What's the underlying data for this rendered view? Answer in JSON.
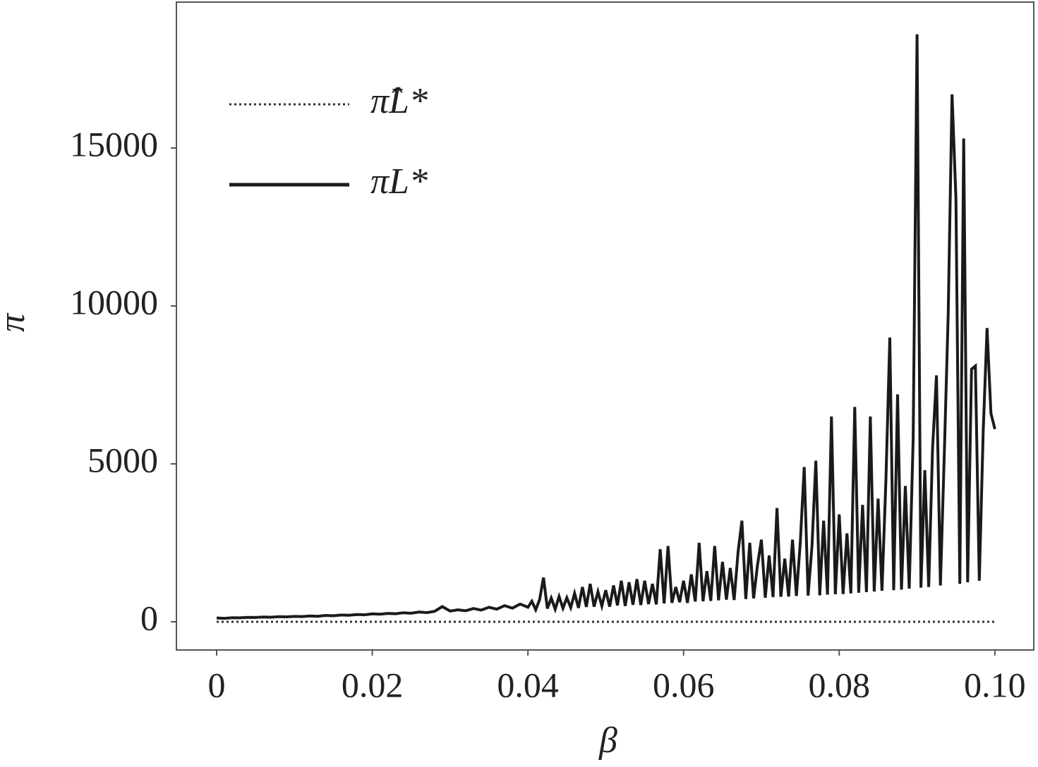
{
  "chart_data": {
    "type": "line",
    "x_label": "β",
    "y_label": "π",
    "xlim": [
      -0.00517,
      0.105
    ],
    "ylim": [
      -893,
      19620
    ],
    "xticks": [
      0,
      0.02,
      0.04,
      0.06,
      0.08,
      {
        "value": 0.1,
        "label": "0.10"
      }
    ],
    "yticks": [
      0,
      5000,
      10000,
      15000
    ],
    "legend": "upper-left",
    "series": [
      {
        "name": "π̂L*",
        "color": "#333333",
        "style": "dotted",
        "x": [
          0,
          0.1
        ],
        "values": [
          0,
          0
        ]
      },
      {
        "name": "πL*",
        "color": "#1a1a1a",
        "style": "solid",
        "x": [
          0,
          0.001,
          0.002,
          0.003,
          0.004,
          0.005,
          0.006,
          0.007,
          0.008,
          0.009,
          0.01,
          0.011,
          0.012,
          0.013,
          0.014,
          0.015,
          0.016,
          0.017,
          0.018,
          0.019,
          0.02,
          0.021,
          0.022,
          0.023,
          0.024,
          0.025,
          0.026,
          0.027,
          0.028,
          0.029,
          0.03,
          0.031,
          0.032,
          0.033,
          0.034,
          0.035,
          0.036,
          0.037,
          0.038,
          0.039,
          0.04,
          0.0405,
          0.041,
          0.0415,
          0.042,
          0.0425,
          0.043,
          0.0435,
          0.044,
          0.0445,
          0.045,
          0.0455,
          0.046,
          0.0465,
          0.047,
          0.0475,
          0.048,
          0.0485,
          0.049,
          0.0495,
          0.05,
          0.0505,
          0.051,
          0.0515,
          0.052,
          0.0525,
          0.053,
          0.0535,
          0.054,
          0.0545,
          0.055,
          0.0555,
          0.056,
          0.0565,
          0.057,
          0.0575,
          0.058,
          0.0585,
          0.059,
          0.0595,
          0.06,
          0.0605,
          0.061,
          0.0615,
          0.062,
          0.0625,
          0.063,
          0.0635,
          0.064,
          0.0645,
          0.065,
          0.0655,
          0.066,
          0.0665,
          0.067,
          0.0675,
          0.068,
          0.0685,
          0.069,
          0.0695,
          0.07,
          0.0705,
          0.071,
          0.0715,
          0.072,
          0.0725,
          0.073,
          0.0735,
          0.074,
          0.0745,
          0.075,
          0.0755,
          0.076,
          0.0765,
          0.077,
          0.0775,
          0.078,
          0.0785,
          0.079,
          0.0795,
          0.08,
          0.0805,
          0.081,
          0.0815,
          0.082,
          0.0825,
          0.083,
          0.0835,
          0.084,
          0.0845,
          0.085,
          0.0855,
          0.086,
          0.0865,
          0.087,
          0.0875,
          0.088,
          0.0885,
          0.089,
          0.0895,
          0.09,
          0.0905,
          0.091,
          0.0915,
          0.092,
          0.0925,
          0.093,
          0.0935,
          0.094,
          0.0945,
          0.095,
          0.0955,
          0.096,
          0.0965,
          0.097,
          0.0975,
          0.098,
          0.0985,
          0.099,
          0.0995,
          0.1
        ],
        "values": [
          120,
          110,
          130,
          125,
          140,
          135,
          150,
          145,
          160,
          155,
          170,
          165,
          185,
          175,
          200,
          190,
          215,
          205,
          230,
          220,
          250,
          240,
          265,
          255,
          285,
          270,
          310,
          290,
          330,
          480,
          340,
          380,
          350,
          420,
          370,
          460,
          400,
          510,
          430,
          560,
          460,
          650,
          380,
          700,
          1400,
          420,
          750,
          400,
          800,
          430,
          760,
          450,
          900,
          440,
          1100,
          470,
          1200,
          480,
          950,
          500,
          1000,
          480,
          1150,
          520,
          1300,
          500,
          1250,
          540,
          1350,
          530,
          1300,
          560,
          1200,
          550,
          2300,
          580,
          2400,
          600,
          1100,
          620,
          1300,
          600,
          1500,
          640,
          2500,
          650,
          1600,
          660,
          2400,
          680,
          1900,
          700,
          1700,
          690,
          2200,
          3200,
          720,
          2500,
          740,
          1800,
          2600,
          760,
          2100,
          780,
          3600,
          790,
          2000,
          800,
          2600,
          820,
          2500,
          4900,
          830,
          2400,
          5100,
          840,
          3200,
          860,
          6500,
          870,
          3400,
          880,
          2800,
          900,
          6800,
          920,
          3700,
          940,
          6500,
          960,
          3900,
          980,
          4500,
          9000,
          1000,
          7200,
          1020,
          4300,
          1050,
          5800,
          18600,
          1080,
          4800,
          1100,
          5500,
          7800,
          1150,
          5300,
          9700,
          16700,
          13400,
          1200,
          15300,
          1250,
          8000,
          8100,
          1300,
          6000,
          9300,
          6600,
          6100
        ]
      }
    ]
  }
}
